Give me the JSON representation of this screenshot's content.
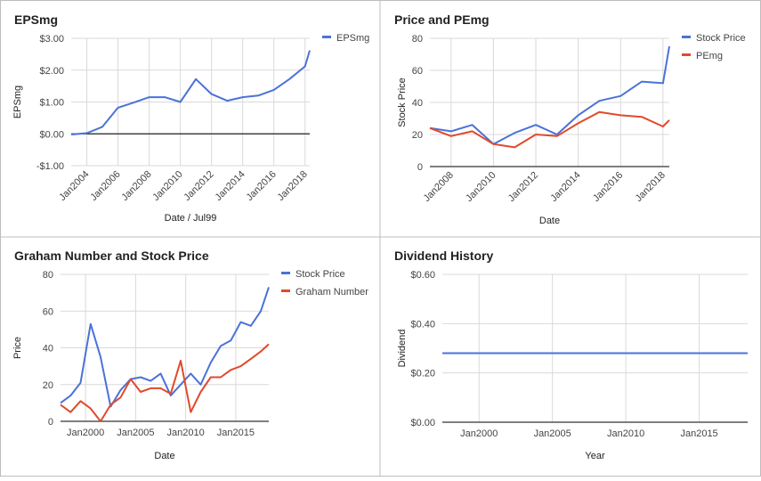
{
  "colors": {
    "blue": "#4a72d8",
    "red": "#e04a2b",
    "grid": "#d9d9d9",
    "zero": "#222222",
    "border": "#bdbdbd",
    "text": "#444444"
  },
  "panels": [
    {
      "id": "eps",
      "title": "EPSmg"
    },
    {
      "id": "pe",
      "title": "Price and PEmg"
    },
    {
      "id": "graham",
      "title": "Graham Number and Stock Price"
    },
    {
      "id": "div",
      "title": "Dividend History"
    }
  ],
  "chart_data": [
    {
      "type": "line",
      "title": "EPSmg",
      "xlabel": "Date / Jul99",
      "ylabel": "EPSmg",
      "x_range": [
        2003,
        2018.3
      ],
      "ylim": [
        -1,
        3
      ],
      "y_ticks": [
        3,
        2,
        1,
        0,
        -1
      ],
      "y_tick_labels": [
        "$3.00",
        "$2.00",
        "$1.00",
        "$0.00",
        "-$1.00"
      ],
      "x_ticks": [
        2004,
        2006,
        2008,
        2010,
        2012,
        2014,
        2016,
        2018
      ],
      "x_tick_labels": [
        "Jan2004",
        "Jan2006",
        "Jan2008",
        "Jan2010",
        "Jan2012",
        "Jan2014",
        "Jan2016",
        "Jan2018"
      ],
      "zero_line": true,
      "legend_position": "top-right",
      "series": [
        {
          "name": "EPSmg",
          "color": "blue",
          "x": [
            2003,
            2004,
            2005,
            2006,
            2007,
            2008,
            2009,
            2010,
            2011,
            2012,
            2013,
            2014,
            2015,
            2016,
            2017,
            2018,
            2018.3
          ],
          "y": [
            -0.02,
            0.02,
            0.22,
            0.82,
            0.98,
            1.15,
            1.15,
            1.0,
            1.72,
            1.25,
            1.04,
            1.15,
            1.2,
            1.38,
            1.72,
            2.12,
            2.62
          ]
        }
      ]
    },
    {
      "type": "line",
      "title": "Price and PEmg",
      "xlabel": "Date",
      "ylabel": "Stock Price",
      "x_range": [
        2007,
        2018.3
      ],
      "ylim": [
        0,
        80
      ],
      "y_ticks": [
        80,
        60,
        40,
        20,
        0
      ],
      "y_tick_labels": [
        "80",
        "60",
        "40",
        "20",
        "0"
      ],
      "x_ticks": [
        2008,
        2010,
        2012,
        2014,
        2016,
        2018
      ],
      "x_tick_labels": [
        "Jan2008",
        "Jan2010",
        "Jan2012",
        "Jan2014",
        "Jan2016",
        "Jan2018"
      ],
      "legend_position": "top-right",
      "series": [
        {
          "name": "Stock Price",
          "color": "blue",
          "x": [
            2007,
            2008,
            2009,
            2010,
            2011,
            2012,
            2013,
            2014,
            2015,
            2016,
            2017,
            2018,
            2018.3
          ],
          "y": [
            24,
            22,
            26,
            14,
            21,
            26,
            20,
            32,
            41,
            44,
            53,
            52,
            75
          ]
        },
        {
          "name": "PEmg",
          "color": "red",
          "x": [
            2007,
            2008,
            2009,
            2010,
            2011,
            2012,
            2013,
            2014,
            2015,
            2016,
            2017,
            2018,
            2018.3
          ],
          "y": [
            24,
            19,
            22,
            14,
            12,
            20,
            19,
            27,
            34,
            32,
            31,
            25,
            29
          ]
        }
      ]
    },
    {
      "type": "line",
      "title": "Graham Number and Stock Price",
      "xlabel": "Date",
      "ylabel": "Price",
      "x_range": [
        1997.5,
        2018.3
      ],
      "ylim": [
        0,
        80
      ],
      "y_ticks": [
        80,
        60,
        40,
        20,
        0
      ],
      "y_tick_labels": [
        "80",
        "60",
        "40",
        "20",
        "0"
      ],
      "x_ticks": [
        2000,
        2005,
        2010,
        2015
      ],
      "x_tick_labels": [
        "Jan2000",
        "Jan2005",
        "Jan2010",
        "Jan2015"
      ],
      "legend_position": "top-right",
      "series": [
        {
          "name": "Stock Price",
          "color": "blue",
          "x": [
            1997.5,
            1998.5,
            1999.5,
            2000.5,
            2001.5,
            2002.5,
            2003.5,
            2004.5,
            2005.5,
            2006.5,
            2007.5,
            2008.5,
            2009.5,
            2010.5,
            2011.5,
            2012.5,
            2013.5,
            2014.5,
            2015.5,
            2016.5,
            2017.5,
            2018.3
          ],
          "y": [
            10,
            14,
            21,
            53,
            35,
            8,
            17,
            23,
            24,
            22,
            26,
            14,
            20,
            26,
            20,
            32,
            41,
            44,
            54,
            52,
            60,
            73
          ]
        },
        {
          "name": "Graham Number",
          "color": "red",
          "x": [
            1997.5,
            1998.5,
            1999.5,
            2000.5,
            2001.5,
            2002.5,
            2003.5,
            2004.5,
            2005.5,
            2006.5,
            2007.5,
            2008.5,
            2009.5,
            2010.5,
            2011.5,
            2012.5,
            2013.5,
            2014.5,
            2015.5,
            2016.5,
            2017.5,
            2018.3
          ],
          "y": [
            9,
            5,
            11,
            7,
            0,
            9,
            13,
            23,
            16,
            18,
            18,
            15,
            33,
            5,
            16,
            24,
            24,
            28,
            30,
            34,
            38,
            42
          ]
        }
      ]
    },
    {
      "type": "line",
      "title": "Dividend History",
      "xlabel": "Year",
      "ylabel": "Dividend",
      "x_range": [
        1997.5,
        2018.3
      ],
      "ylim": [
        0,
        0.6
      ],
      "y_ticks": [
        0.6,
        0.4,
        0.2,
        0
      ],
      "y_tick_labels": [
        "$0.60",
        "$0.40",
        "$0.20",
        "$0.00"
      ],
      "x_ticks": [
        2000,
        2005,
        2010,
        2015
      ],
      "x_tick_labels": [
        "Jan2000",
        "Jan2005",
        "Jan2010",
        "Jan2015"
      ],
      "series": [
        {
          "color": "blue",
          "x": [
            1997.5,
            2018.3
          ],
          "y": [
            0.28,
            0.28
          ]
        }
      ]
    }
  ]
}
